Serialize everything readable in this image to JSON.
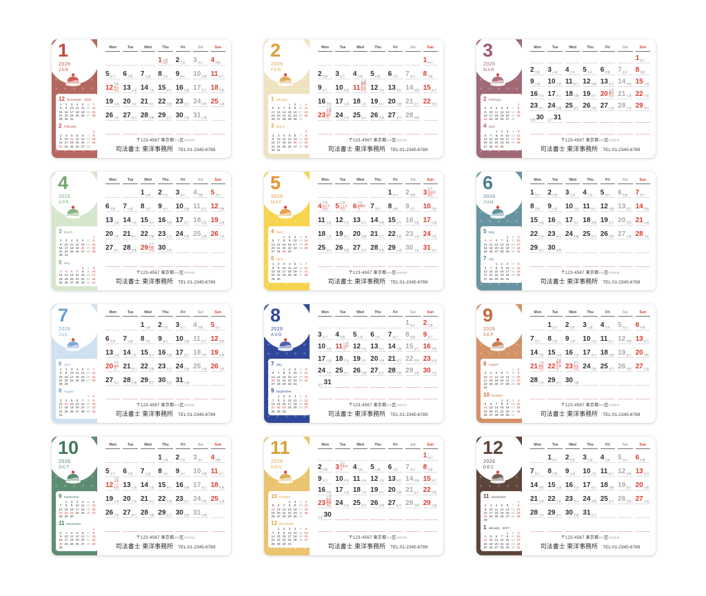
{
  "footer": {
    "address": "〒123-4567 東京都○○区○○○○",
    "office": "司法書士 東洋事務所",
    "tel": "TEL:01-2345-6789"
  },
  "weekdays": [
    "Mon",
    "Tue",
    "Wed",
    "Thu",
    "Fri",
    "Sat",
    "Sun"
  ],
  "rokuyo_cycle": [
    "先勝",
    "友引",
    "先負",
    "仏滅",
    "大安",
    "赤口"
  ],
  "palette": {
    "holiday_red": "#d8392c",
    "saturday_gray": "#a9a9a9",
    "weekday_black": "#2e2e2e"
  },
  "months": [
    {
      "num": "1",
      "year": "2026",
      "abbr": "JAN",
      "panel": "#b4675e",
      "accent": "#c0493b",
      "illustration": "shortcake",
      "first_dow": 3,
      "days": 31,
      "holidays": {
        "1": "元日",
        "12": "成人の日"
      },
      "minis": [
        {
          "num": "12",
          "label": "December · 2025",
          "first_dow": 0,
          "days": 31,
          "holidays": []
        },
        {
          "num": "2",
          "label": "February",
          "first_dow": 6,
          "days": 28,
          "holidays": [
            11,
            23
          ]
        }
      ]
    },
    {
      "num": "2",
      "year": "2026",
      "abbr": "FEB",
      "panel": "#f0e2c0",
      "accent": "#dd9f3c",
      "illustration": "pancakes",
      "first_dow": 6,
      "days": 28,
      "holidays": {
        "11": "建国記念の日",
        "23": "天皇誕生日"
      },
      "minis": [
        {
          "num": "1",
          "label": "January",
          "first_dow": 3,
          "days": 31,
          "holidays": [
            1,
            12
          ]
        },
        {
          "num": "3",
          "label": "March",
          "first_dow": 6,
          "days": 31,
          "holidays": [
            20
          ]
        }
      ]
    },
    {
      "num": "3",
      "year": "2026",
      "abbr": "MAR",
      "panel": "#a06a76",
      "accent": "#a05a6b",
      "illustration": "matcha-sweet",
      "first_dow": 6,
      "days": 31,
      "holidays": {
        "20": "春分の日"
      },
      "minis": [
        {
          "num": "2",
          "label": "February",
          "first_dow": 6,
          "days": 28,
          "holidays": [
            11,
            23
          ]
        },
        {
          "num": "4",
          "label": "April",
          "first_dow": 2,
          "days": 30,
          "holidays": [
            29
          ]
        }
      ]
    },
    {
      "num": "4",
      "year": "2026",
      "abbr": "APR",
      "panel": "#d5e6cc",
      "accent": "#74a86e",
      "illustration": "cream-soda",
      "first_dow": 2,
      "days": 30,
      "holidays": {
        "29": "昭和の日"
      },
      "minis": [
        {
          "num": "3",
          "label": "March",
          "first_dow": 6,
          "days": 31,
          "holidays": [
            20
          ]
        },
        {
          "num": "5",
          "label": "May",
          "first_dow": 4,
          "days": 31,
          "holidays": [
            3,
            4,
            5,
            6
          ]
        }
      ]
    },
    {
      "num": "5",
      "year": "2026",
      "abbr": "MAY",
      "panel": "#f6d44e",
      "accent": "#e8912d",
      "illustration": "lunch-plate",
      "first_dow": 4,
      "days": 31,
      "holidays": {
        "3": "憲法記念日",
        "4": "みどりの日",
        "5": "こどもの日",
        "6": "振替休日"
      },
      "minis": [
        {
          "num": "4",
          "label": "April",
          "first_dow": 2,
          "days": 30,
          "holidays": [
            29
          ]
        },
        {
          "num": "6",
          "label": "June",
          "first_dow": 0,
          "days": 30,
          "holidays": []
        }
      ]
    },
    {
      "num": "6",
      "year": "2026",
      "abbr": "JUN",
      "panel": "#6794a0",
      "accent": "#497e8d",
      "illustration": "tempura-shrimp",
      "first_dow": 0,
      "days": 30,
      "holidays": {},
      "minis": [
        {
          "num": "5",
          "label": "May",
          "first_dow": 4,
          "days": 31,
          "holidays": [
            3,
            4,
            5,
            6
          ]
        },
        {
          "num": "7",
          "label": "July",
          "first_dow": 2,
          "days": 31,
          "holidays": [
            20
          ]
        }
      ]
    },
    {
      "num": "7",
      "year": "2026",
      "abbr": "JUL",
      "panel": "#cfe1f0",
      "accent": "#6e9ecf",
      "illustration": "jelly",
      "first_dow": 2,
      "days": 31,
      "holidays": {
        "20": "海の日"
      },
      "minis": [
        {
          "num": "6",
          "label": "June",
          "first_dow": 0,
          "days": 30,
          "holidays": []
        },
        {
          "num": "8",
          "label": "August",
          "first_dow": 5,
          "days": 31,
          "holidays": [
            11
          ]
        }
      ]
    },
    {
      "num": "8",
      "year": "2026",
      "abbr": "AUG",
      "panel": "#30489c",
      "accent": "#30489c",
      "illustration": "ice-cream-sundae",
      "first_dow": 5,
      "days": 31,
      "holidays": {
        "11": "山の日"
      },
      "minis": [
        {
          "num": "7",
          "label": "July",
          "first_dow": 2,
          "days": 31,
          "holidays": [
            20
          ]
        },
        {
          "num": "9",
          "label": "September",
          "first_dow": 1,
          "days": 30,
          "holidays": [
            21,
            22,
            23
          ]
        }
      ]
    },
    {
      "num": "9",
      "year": "2026",
      "abbr": "SEP",
      "panel": "#d39267",
      "accent": "#bf6a3c",
      "illustration": "chestnuts",
      "first_dow": 1,
      "days": 30,
      "holidays": {
        "21": "敬老の日",
        "22": "国民の休日",
        "23": "秋分の日"
      },
      "minis": [
        {
          "num": "8",
          "label": "August",
          "first_dow": 5,
          "days": 31,
          "holidays": [
            11
          ]
        },
        {
          "num": "10",
          "label": "October",
          "first_dow": 3,
          "days": 31,
          "holidays": [
            12
          ]
        }
      ]
    },
    {
      "num": "10",
      "year": "2026",
      "abbr": "OCT",
      "panel": "#5e8c73",
      "accent": "#3f7a5e",
      "illustration": "pudding",
      "first_dow": 3,
      "days": 31,
      "holidays": {
        "12": "スポーツの日"
      },
      "minis": [
        {
          "num": "9",
          "label": "September",
          "first_dow": 1,
          "days": 30,
          "holidays": [
            21,
            22,
            23
          ]
        },
        {
          "num": "11",
          "label": "November",
          "first_dow": 6,
          "days": 30,
          "holidays": [
            3,
            23
          ]
        }
      ]
    },
    {
      "num": "11",
      "year": "2026",
      "abbr": "NOV",
      "panel": "#eac46e",
      "accent": "#d8a038",
      "illustration": "omelet-rice",
      "first_dow": 6,
      "days": 30,
      "holidays": {
        "3": "文化の日",
        "23": "勤労感謝の日"
      },
      "minis": [
        {
          "num": "10",
          "label": "October",
          "first_dow": 3,
          "days": 31,
          "holidays": [
            12
          ]
        },
        {
          "num": "12",
          "label": "December",
          "first_dow": 1,
          "days": 31,
          "holidays": []
        }
      ]
    },
    {
      "num": "12",
      "year": "2026",
      "abbr": "DEC",
      "panel": "#5d453b",
      "accent": "#5d453b",
      "illustration": "coffee",
      "first_dow": 1,
      "days": 31,
      "holidays": {},
      "minis": [
        {
          "num": "11",
          "label": "November",
          "first_dow": 6,
          "days": 30,
          "holidays": [
            3,
            23
          ]
        },
        {
          "num": "1",
          "label": "January · 2027",
          "first_dow": 4,
          "days": 31,
          "holidays": [
            1,
            11
          ]
        }
      ]
    }
  ]
}
